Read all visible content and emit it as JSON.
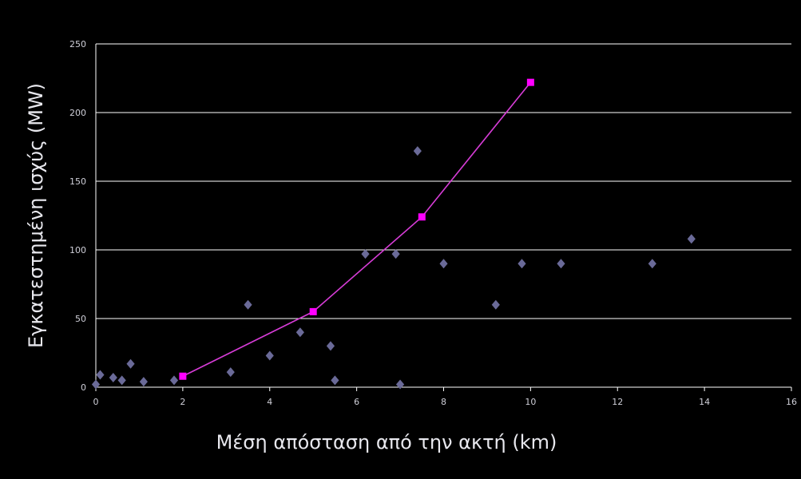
{
  "chart_data": {
    "type": "scatter",
    "xlabel": "Μέση απόσταση από την ακτή (km)",
    "ylabel": "Εγκατεστημένη ισχύς (MW)",
    "xlim": [
      0,
      16
    ],
    "ylim": [
      0,
      250
    ],
    "x_ticks": [
      "0",
      "2",
      "4",
      "6",
      "8",
      "10",
      "12",
      "14",
      "16"
    ],
    "y_ticks": [
      "0",
      "50",
      "100",
      "150",
      "200",
      "250"
    ],
    "grid": "horizontal",
    "legend": "none",
    "colors": {
      "background": "#000000",
      "grid": "#ffffff",
      "scatter": "#6a6a98",
      "trend": "#d63cd6",
      "trend_marker": "#ff00ff"
    },
    "series": [
      {
        "kind": "scatter",
        "marker": "diamond",
        "points": [
          [
            0,
            2
          ],
          [
            0.1,
            9
          ],
          [
            0.4,
            7
          ],
          [
            0.6,
            5
          ],
          [
            0.8,
            17
          ],
          [
            1.1,
            4
          ],
          [
            1.8,
            5
          ],
          [
            3.1,
            11
          ],
          [
            3.5,
            60
          ],
          [
            4.0,
            23
          ],
          [
            4.7,
            40
          ],
          [
            5.4,
            30
          ],
          [
            5.5,
            5
          ],
          [
            6.2,
            97
          ],
          [
            6.9,
            97
          ],
          [
            7.0,
            2
          ],
          [
            7.4,
            172
          ],
          [
            8.0,
            90
          ],
          [
            9.2,
            60
          ],
          [
            9.8,
            90
          ],
          [
            10.7,
            90
          ],
          [
            12.8,
            90
          ],
          [
            13.7,
            108
          ]
        ]
      },
      {
        "kind": "line",
        "marker": "square",
        "points": [
          [
            2,
            8
          ],
          [
            5,
            55
          ],
          [
            7.5,
            124
          ],
          [
            10,
            222
          ]
        ]
      }
    ]
  }
}
